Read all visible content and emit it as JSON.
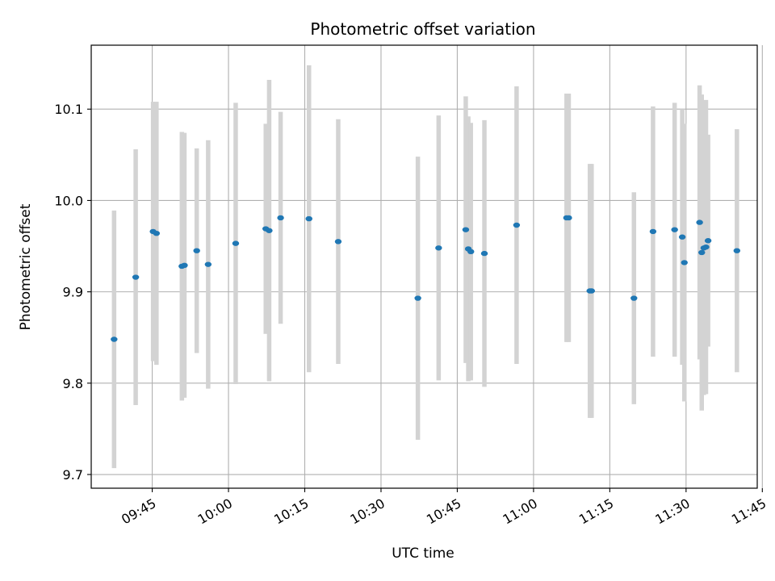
{
  "chart_data": {
    "type": "scatter",
    "title": "Photometric offset variation",
    "xlabel": "UTC time",
    "ylabel": "Photometric offset",
    "x_is_time": true,
    "xlim": [
      "09:33",
      "11:44"
    ],
    "ylim": [
      9.685,
      10.17
    ],
    "x_ticks": [
      "09:45",
      "10:00",
      "10:15",
      "10:30",
      "10:45",
      "11:00",
      "11:15",
      "11:30",
      "11:45"
    ],
    "y_ticks": [
      9.7,
      9.8,
      9.9,
      10.0,
      10.1
    ],
    "y_tick_labels": [
      "9.7",
      "9.8",
      "9.9",
      "10.0",
      "10.1"
    ],
    "grid": true,
    "point_color": "#1f77b4",
    "errorbar_color": "#d3d3d3",
    "points": [
      {
        "x": "09:37:30",
        "y": 9.848,
        "err": 0.141
      },
      {
        "x": "09:41:45",
        "y": 9.916,
        "err": 0.14
      },
      {
        "x": "09:45:10",
        "y": 9.966,
        "err": 0.142
      },
      {
        "x": "09:45:50",
        "y": 9.964,
        "err": 0.144
      },
      {
        "x": "09:50:50",
        "y": 9.928,
        "err": 0.147
      },
      {
        "x": "09:51:20",
        "y": 9.929,
        "err": 0.145
      },
      {
        "x": "09:53:45",
        "y": 9.945,
        "err": 0.112
      },
      {
        "x": "09:56:00",
        "y": 9.93,
        "err": 0.136
      },
      {
        "x": "10:01:25",
        "y": 9.953,
        "err": 0.154
      },
      {
        "x": "10:07:20",
        "y": 9.969,
        "err": 0.115
      },
      {
        "x": "10:08:00",
        "y": 9.967,
        "err": 0.165
      },
      {
        "x": "10:10:15",
        "y": 9.981,
        "err": 0.116
      },
      {
        "x": "10:15:50",
        "y": 9.98,
        "err": 0.168
      },
      {
        "x": "10:21:35",
        "y": 9.955,
        "err": 0.134
      },
      {
        "x": "10:37:15",
        "y": 9.893,
        "err": 0.155
      },
      {
        "x": "10:41:20",
        "y": 9.948,
        "err": 0.145
      },
      {
        "x": "10:46:40",
        "y": 9.968,
        "err": 0.146
      },
      {
        "x": "10:47:10",
        "y": 9.947,
        "err": 0.145
      },
      {
        "x": "10:47:40",
        "y": 9.944,
        "err": 0.141
      },
      {
        "x": "10:50:20",
        "y": 9.942,
        "err": 0.146
      },
      {
        "x": "10:56:40",
        "y": 9.973,
        "err": 0.152
      },
      {
        "x": "11:06:30",
        "y": 9.981,
        "err": 0.136
      },
      {
        "x": "11:06:55",
        "y": 9.981,
        "err": 0.136
      },
      {
        "x": "11:11:05",
        "y": 9.901,
        "err": 0.139
      },
      {
        "x": "11:11:25",
        "y": 9.901,
        "err": 0.139
      },
      {
        "x": "11:19:45",
        "y": 9.893,
        "err": 0.116
      },
      {
        "x": "11:23:30",
        "y": 9.966,
        "err": 0.137
      },
      {
        "x": "11:27:45",
        "y": 9.968,
        "err": 0.139
      },
      {
        "x": "11:29:15",
        "y": 9.96,
        "err": 0.14
      },
      {
        "x": "11:29:40",
        "y": 9.932,
        "err": 0.152
      },
      {
        "x": "11:32:40",
        "y": 9.976,
        "err": 0.15
      },
      {
        "x": "11:33:05",
        "y": 9.943,
        "err": 0.173
      },
      {
        "x": "11:33:30",
        "y": 9.948,
        "err": 0.161
      },
      {
        "x": "11:33:55",
        "y": 9.949,
        "err": 0.161
      },
      {
        "x": "11:34:20",
        "y": 9.956,
        "err": 0.116
      },
      {
        "x": "11:40:00",
        "y": 9.945,
        "err": 0.133
      }
    ]
  }
}
